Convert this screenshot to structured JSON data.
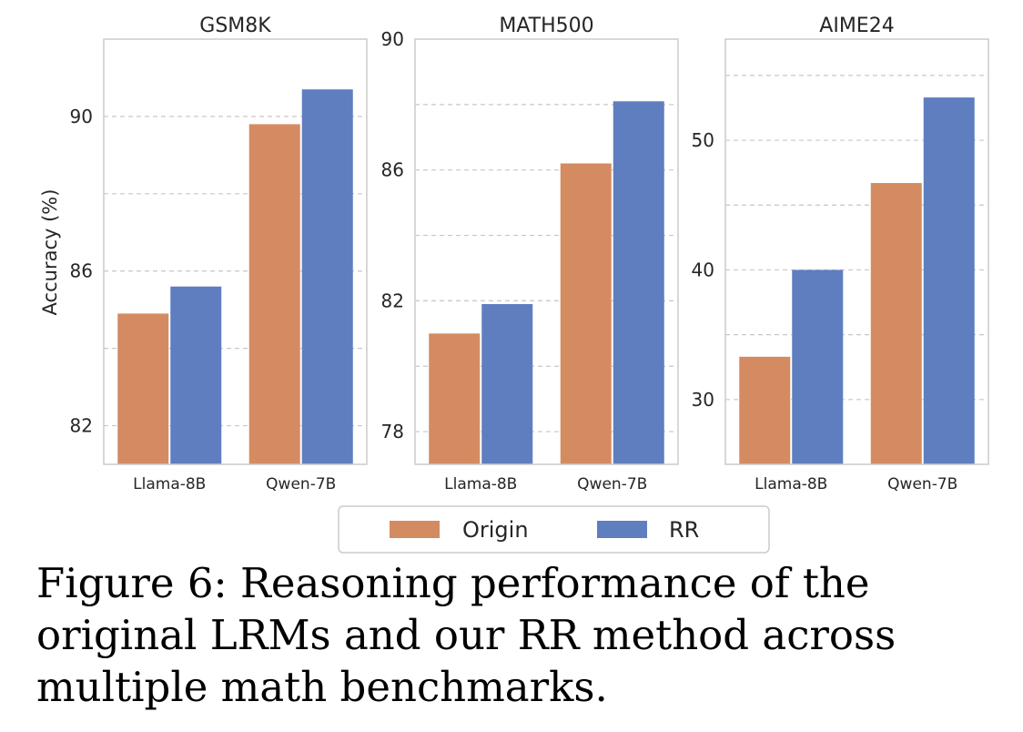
{
  "chart_data": {
    "type": "bar",
    "ylabel": "Accuracy (%)",
    "legend": {
      "position": "bottom-center",
      "entries": [
        {
          "name": "Origin",
          "color": "#d48b62"
        },
        {
          "name": "RR",
          "color": "#5f7ebf"
        }
      ]
    },
    "panels": [
      {
        "title": "GSM8K",
        "categories": [
          "Llama-8B",
          "Qwen-7B"
        ],
        "series": [
          {
            "name": "Origin",
            "values": [
              84.9,
              89.8
            ]
          },
          {
            "name": "RR",
            "values": [
              85.6,
              90.7
            ]
          }
        ],
        "ylim": [
          81.0,
          92.0
        ],
        "yticks": [
          82,
          86,
          90
        ],
        "grid": true
      },
      {
        "title": "MATH500",
        "categories": [
          "Llama-8B",
          "Qwen-7B"
        ],
        "series": [
          {
            "name": "Origin",
            "values": [
              81.0,
              86.2
            ]
          },
          {
            "name": "RR",
            "values": [
              81.9,
              88.1
            ]
          }
        ],
        "ylim": [
          77.0,
          90.0
        ],
        "yticks": [
          78,
          82,
          86,
          90
        ],
        "grid": true
      },
      {
        "title": "AIME24",
        "categories": [
          "Llama-8B",
          "Qwen-7B"
        ],
        "series": [
          {
            "name": "Origin",
            "values": [
              33.3,
              46.7
            ]
          },
          {
            "name": "RR",
            "values": [
              40.0,
              53.3
            ]
          }
        ],
        "ylim": [
          25.0,
          57.8
        ],
        "yticks": [
          30,
          40,
          50
        ],
        "grid": true
      }
    ]
  },
  "caption": "Figure 6: Reasoning performance of the original LRMs and our RR method across multiple math benchmarks."
}
